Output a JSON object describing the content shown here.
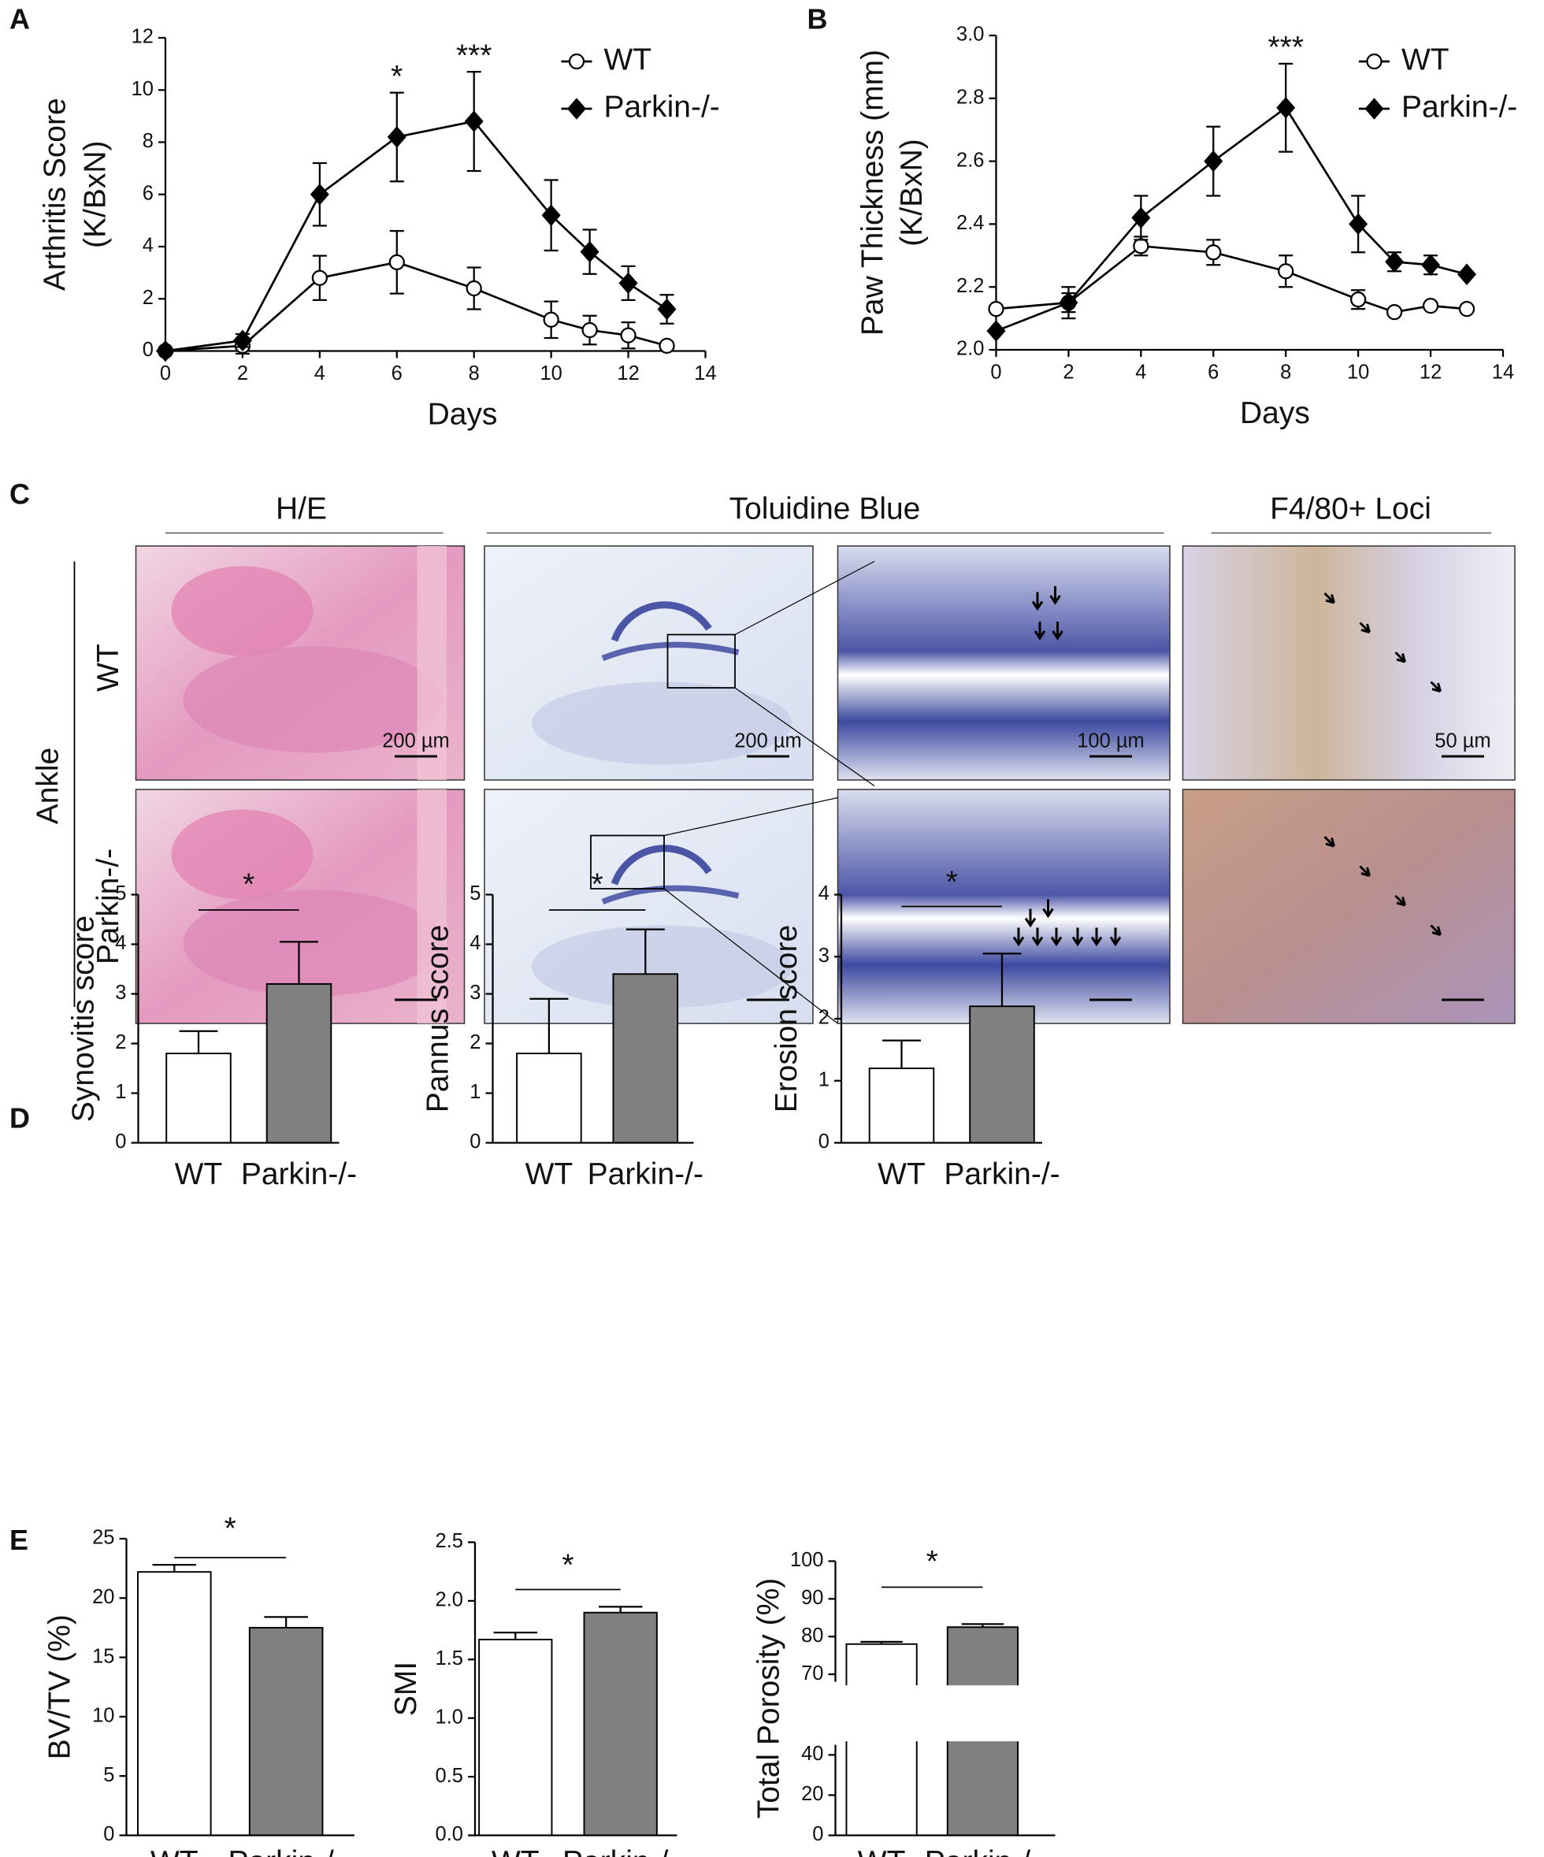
{
  "panels": [
    "A",
    "B",
    "C",
    "D",
    "E"
  ],
  "histology": {
    "columns": [
      "H/E",
      "Toluidine Blue",
      "F4/80+ Loci"
    ],
    "region": "Ankle",
    "rows": [
      "WT",
      "Parkin-/-"
    ],
    "scale_bars": [
      "200 µm",
      "200 µm",
      "100 µm",
      "50 µm"
    ]
  },
  "chart_data": [
    {
      "type": "line",
      "ylabel": [
        "Arthritis Score",
        "(K/BxN)"
      ],
      "xlabel": "Days",
      "x": [
        0,
        2,
        4,
        6,
        8,
        10,
        11,
        12,
        13
      ],
      "xlim": [
        0,
        14
      ],
      "xticks": [
        0,
        2,
        4,
        6,
        8,
        10,
        12,
        14
      ],
      "ylim": [
        0,
        12
      ],
      "yticks": [
        0,
        2,
        4,
        6,
        8,
        10,
        12
      ],
      "legend": "upper right",
      "series": [
        {
          "name": "WT",
          "color": "#000000",
          "marker": "circle",
          "filled": false,
          "values": [
            0,
            0.2,
            2.8,
            3.4,
            2.4,
            1.2,
            0.8,
            0.6,
            0.2
          ],
          "errors": [
            0,
            0.3,
            0.85,
            1.2,
            0.8,
            0.7,
            0.55,
            0.5,
            0
          ]
        },
        {
          "name": "Parkin-/-",
          "color": "#000000",
          "marker": "diamond",
          "filled": true,
          "values": [
            0,
            0.4,
            6.0,
            8.2,
            8.8,
            5.2,
            3.8,
            2.6,
            1.6
          ],
          "errors": [
            0,
            0.25,
            1.2,
            1.7,
            1.9,
            1.35,
            0.85,
            0.65,
            0.55
          ]
        }
      ],
      "annotations": [
        {
          "text": "*",
          "x": 6
        },
        {
          "text": "***",
          "x": 8
        }
      ]
    },
    {
      "type": "line",
      "ylabel": [
        "Paw Thickness (mm)",
        "(K/BxN)"
      ],
      "xlabel": "Days",
      "x": [
        0,
        2,
        4,
        6,
        8,
        10,
        11,
        12,
        13
      ],
      "xlim": [
        0,
        14
      ],
      "xticks": [
        0,
        2,
        4,
        6,
        8,
        10,
        12,
        14
      ],
      "ylim": [
        2.0,
        3.0
      ],
      "yticks": [
        {
          "value": 2,
          "label": "2.0"
        },
        2.2,
        2.4,
        2.6,
        2.8,
        {
          "value": 3,
          "label": "3.0"
        }
      ],
      "legend": "upper right",
      "series": [
        {
          "name": "WT",
          "color": "#000000",
          "marker": "circle",
          "filled": false,
          "values": [
            2.13,
            2.15,
            2.33,
            2.31,
            2.25,
            2.16,
            2.12,
            2.14,
            2.13
          ],
          "errors": [
            0,
            0.03,
            0.03,
            0.04,
            0.05,
            0.03,
            0,
            0,
            0
          ]
        },
        {
          "name": "Parkin-/-",
          "color": "#000000",
          "marker": "diamond",
          "filled": true,
          "values": [
            2.06,
            2.15,
            2.42,
            2.6,
            2.77,
            2.4,
            2.28,
            2.27,
            2.24
          ],
          "errors": [
            0,
            0.05,
            0.07,
            0.11,
            0.14,
            0.09,
            0.03,
            0.03,
            0
          ]
        }
      ],
      "annotations": [
        {
          "text": "***",
          "x": 8
        }
      ]
    },
    {
      "type": "bar",
      "ylabel": "Synovitis score",
      "categories": [
        "WT",
        "Parkin-/-"
      ],
      "values": [
        1.8,
        3.2
      ],
      "errors": [
        0.45,
        0.85
      ],
      "colors": [
        "#ffffff",
        "#808080"
      ],
      "ylim": [
        0,
        5
      ],
      "yticks": [
        0,
        1,
        2,
        3,
        4,
        5
      ],
      "significance": "*"
    },
    {
      "type": "bar",
      "ylabel": "Pannus score",
      "categories": [
        "WT",
        "Parkin-/-"
      ],
      "values": [
        1.8,
        3.4
      ],
      "errors": [
        1.1,
        0.9
      ],
      "colors": [
        "#ffffff",
        "#808080"
      ],
      "ylim": [
        0,
        5
      ],
      "yticks": [
        0,
        1,
        2,
        3,
        4,
        5
      ],
      "significance": "*"
    },
    {
      "type": "bar",
      "ylabel": "Erosion score",
      "categories": [
        "WT",
        "Parkin-/-"
      ],
      "values": [
        1.2,
        2.2
      ],
      "errors": [
        0.45,
        0.85
      ],
      "colors": [
        "#ffffff",
        "#808080"
      ],
      "ylim": [
        0,
        4
      ],
      "yticks": [
        0,
        1,
        2,
        3,
        4
      ],
      "significance": "*"
    },
    {
      "type": "bar",
      "ylabel": "BV/TV (%)",
      "categories": [
        "WT",
        "Parkin-/-"
      ],
      "values": [
        22.2,
        17.5
      ],
      "errors": [
        0.6,
        0.9
      ],
      "colors": [
        "#ffffff",
        "#808080"
      ],
      "ylim": [
        0,
        25
      ],
      "yticks": [
        0,
        5,
        10,
        15,
        20,
        25
      ],
      "significance": "*"
    },
    {
      "type": "bar",
      "ylabel": "SMI",
      "categories": [
        "WT",
        "Parkin-/-"
      ],
      "values": [
        1.67,
        1.9
      ],
      "errors": [
        0.06,
        0.05
      ],
      "colors": [
        "#ffffff",
        "#808080"
      ],
      "ylim": [
        0,
        2.5
      ],
      "yticks": [
        {
          "value": 0,
          "label": "0.0"
        },
        0.5,
        {
          "value": 1,
          "label": "1.0"
        },
        1.5,
        {
          "value": 2,
          "label": "2.0"
        },
        2.5
      ],
      "significance": "*"
    },
    {
      "type": "bar",
      "ylabel": "Total Porosity (%)",
      "categories": [
        "WT",
        "Parkin-/-"
      ],
      "values": [
        78,
        82.5
      ],
      "errors": [
        0.6,
        0.8
      ],
      "colors": [
        "#ffffff",
        "#808080"
      ],
      "ylim": [
        0,
        100
      ],
      "yticks": [
        0,
        20,
        40,
        70,
        80,
        90,
        100
      ],
      "axis_break": [
        45,
        68
      ],
      "significance": "*"
    }
  ]
}
